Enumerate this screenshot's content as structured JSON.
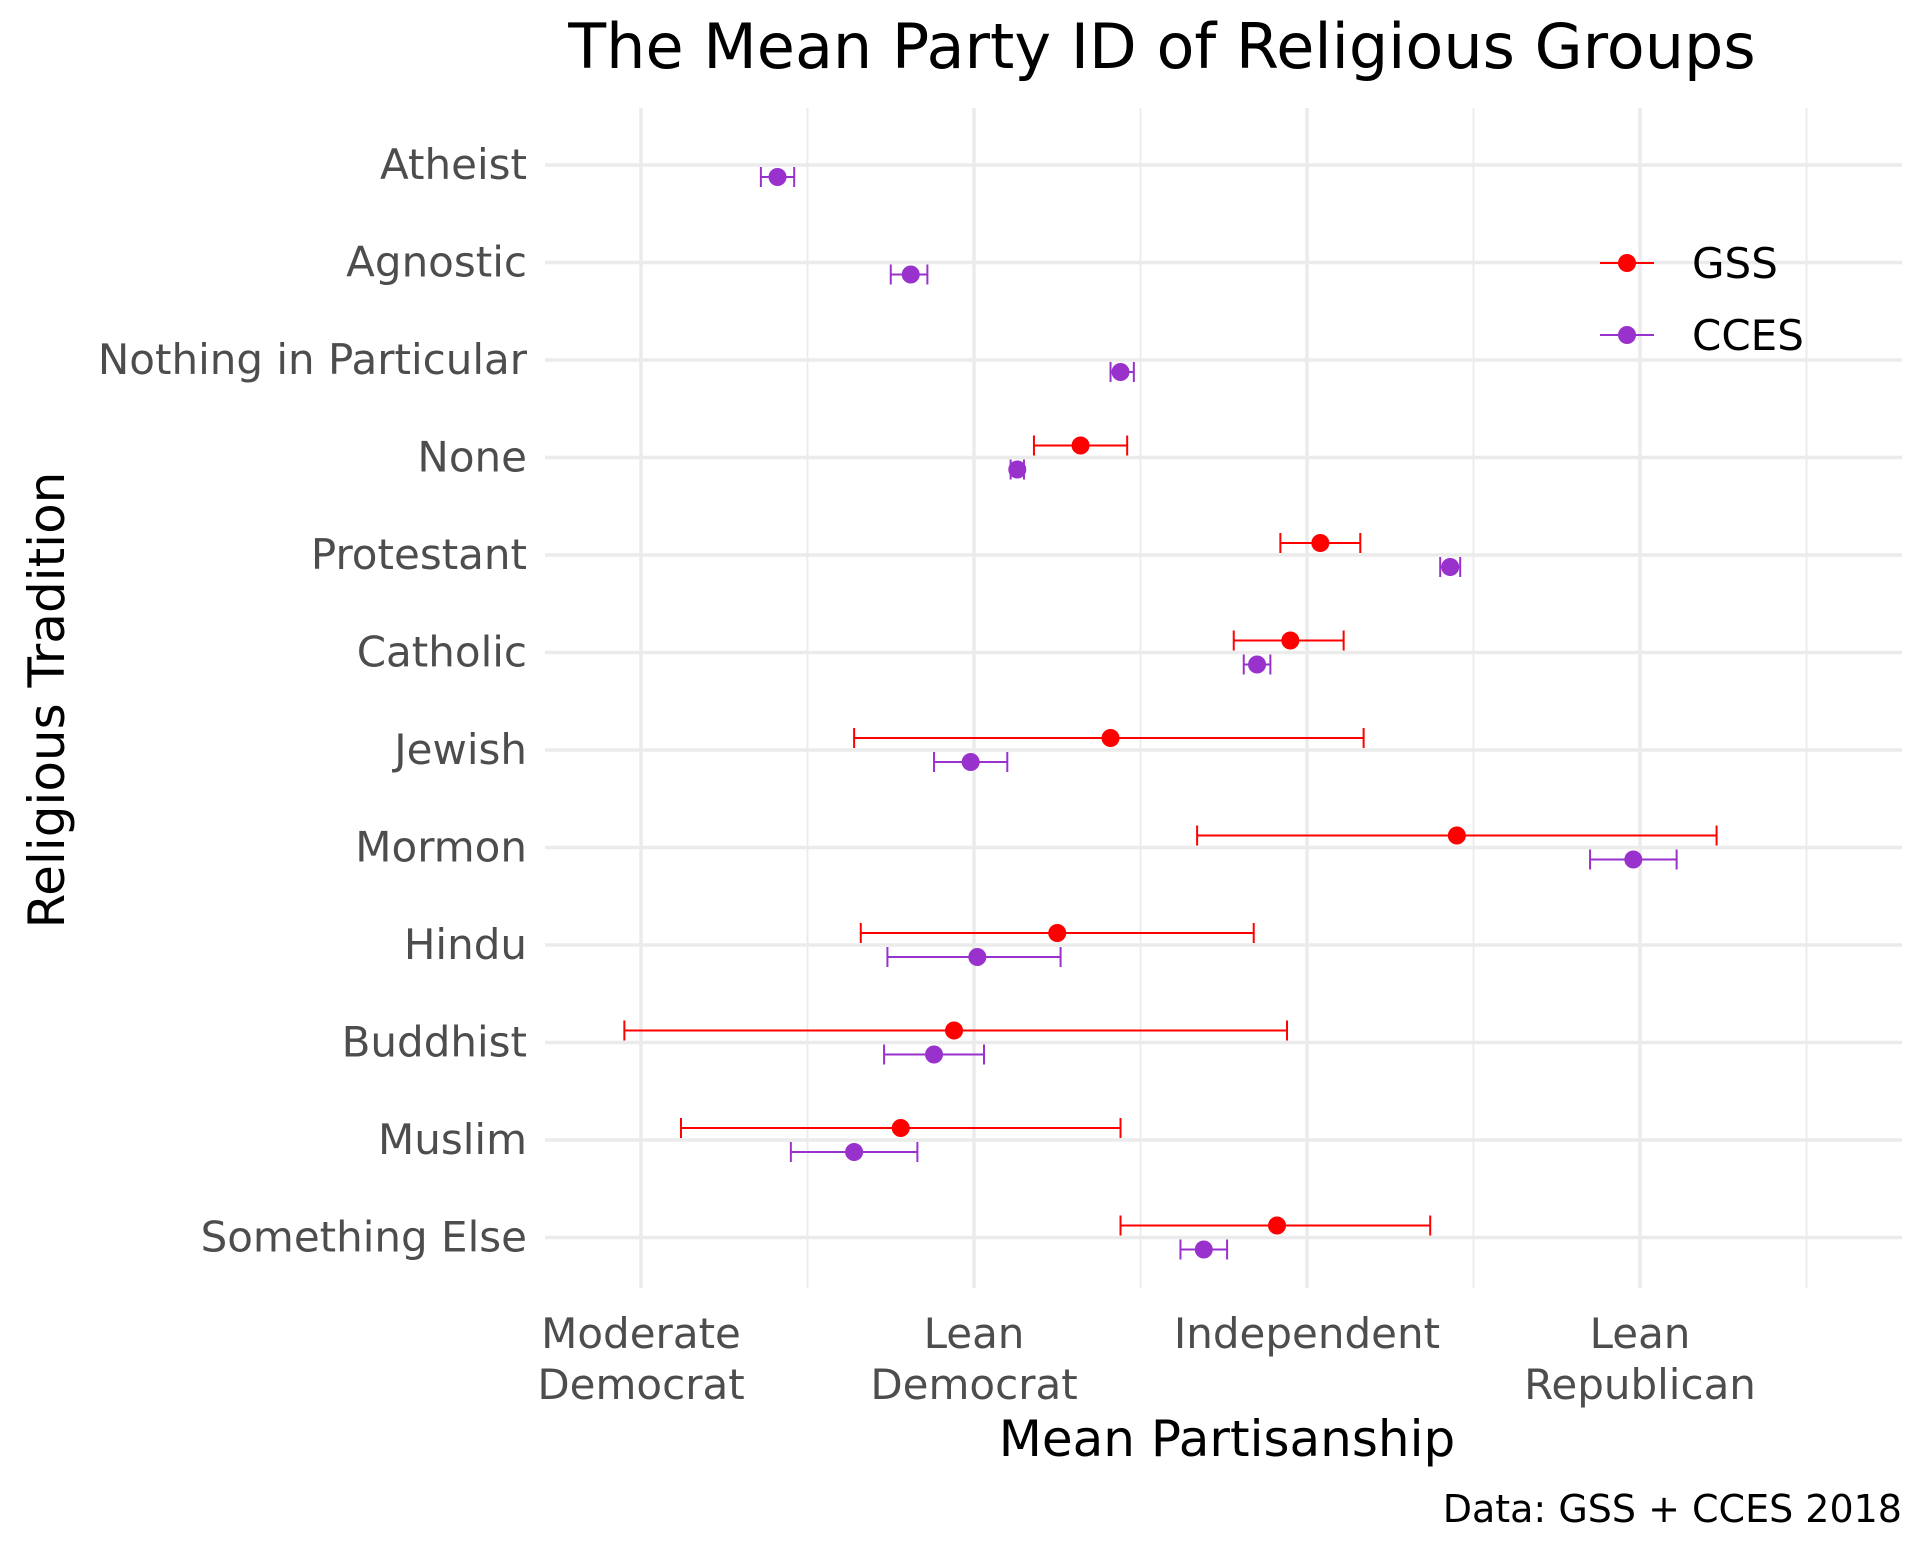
{
  "chart_data": {
    "type": "scatter",
    "title": "The Mean Party ID of Religious Groups",
    "xlabel": "Mean Partisanship",
    "ylabel": "Religious Tradition",
    "caption": "Data: GSS + CCES 2018",
    "xlim": [
      1.65,
      6.3
    ],
    "x_ticks": [
      {
        "value": 2,
        "label": "Moderate\nDemocrat"
      },
      {
        "value": 3,
        "label": "Lean\nDemocrat"
      },
      {
        "value": 4,
        "label": "Independent"
      },
      {
        "value": 5,
        "label": "Lean\nRepublican"
      }
    ],
    "x_minor_ticks": [
      2.5,
      3.5,
      4.5,
      5.5
    ],
    "grid": true,
    "legend_position": "top-right",
    "colors": {
      "GSS": "#ff0000",
      "CCES": "#9932cc"
    },
    "categories": [
      "Atheist",
      "Agnostic",
      "Nothing in Particular",
      "None",
      "Protestant",
      "Catholic",
      "Jewish",
      "Mormon",
      "Hindu",
      "Buddhist",
      "Muslim",
      "Something Else"
    ],
    "series": [
      {
        "name": "GSS",
        "points": [
          {
            "category": "None",
            "mean": 3.32,
            "low": 3.18,
            "high": 3.46
          },
          {
            "category": "Protestant",
            "mean": 4.04,
            "low": 3.92,
            "high": 4.16
          },
          {
            "category": "Catholic",
            "mean": 3.95,
            "low": 3.78,
            "high": 4.11
          },
          {
            "category": "Jewish",
            "mean": 3.41,
            "low": 2.64,
            "high": 4.17
          },
          {
            "category": "Mormon",
            "mean": 4.45,
            "low": 3.67,
            "high": 5.23
          },
          {
            "category": "Hindu",
            "mean": 3.25,
            "low": 2.66,
            "high": 3.84
          },
          {
            "category": "Buddhist",
            "mean": 2.94,
            "low": 1.95,
            "high": 3.94
          },
          {
            "category": "Muslim",
            "mean": 2.78,
            "low": 2.12,
            "high": 3.44
          },
          {
            "category": "Something Else",
            "mean": 3.91,
            "low": 3.44,
            "high": 4.37
          }
        ]
      },
      {
        "name": "CCES",
        "points": [
          {
            "category": "Atheist",
            "mean": 2.41,
            "low": 2.36,
            "high": 2.46
          },
          {
            "category": "Agnostic",
            "mean": 2.81,
            "low": 2.75,
            "high": 2.86
          },
          {
            "category": "Nothing in Particular",
            "mean": 3.44,
            "low": 3.41,
            "high": 3.48
          },
          {
            "category": "None",
            "mean": 3.13,
            "low": 3.11,
            "high": 3.15
          },
          {
            "category": "Protestant",
            "mean": 4.43,
            "low": 4.4,
            "high": 4.46
          },
          {
            "category": "Catholic",
            "mean": 3.85,
            "low": 3.81,
            "high": 3.89
          },
          {
            "category": "Jewish",
            "mean": 2.99,
            "low": 2.88,
            "high": 3.1
          },
          {
            "category": "Mormon",
            "mean": 4.98,
            "low": 4.85,
            "high": 5.11
          },
          {
            "category": "Hindu",
            "mean": 3.01,
            "low": 2.74,
            "high": 3.26
          },
          {
            "category": "Buddhist",
            "mean": 2.88,
            "low": 2.73,
            "high": 3.03
          },
          {
            "category": "Muslim",
            "mean": 2.64,
            "low": 2.45,
            "high": 2.83
          },
          {
            "category": "Something Else",
            "mean": 3.69,
            "low": 3.62,
            "high": 3.76
          }
        ]
      }
    ]
  }
}
